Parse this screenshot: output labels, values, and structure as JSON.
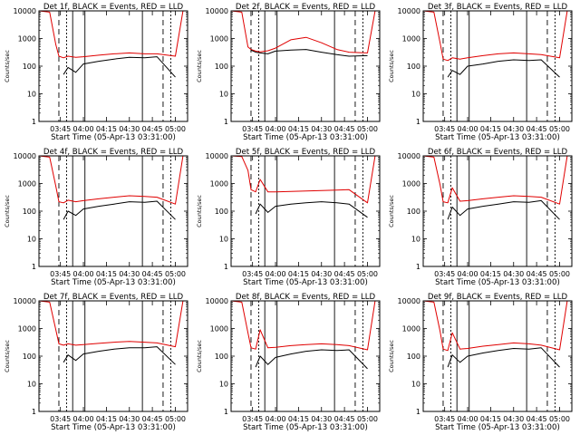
{
  "figure": {
    "xlabel": "Start Time (05-Apr-13 03:31:00)",
    "ylabel": "Counts/sec",
    "x_tick_labels": [
      "03:45",
      "04:00",
      "04:15",
      "04:30",
      "04:45",
      "05:00"
    ],
    "y_tick_labels": [
      "1",
      "10",
      "100",
      "1000",
      "10000"
    ],
    "colors": {
      "events": "#000000",
      "lld": "#e00000",
      "axes": "#000000"
    }
  },
  "chart_data": [
    {
      "type": "line",
      "title": "Det 1f, BLACK = Events, RED = LLD",
      "xlabel": "Start Time (05-Apr-13 03:31:00)",
      "ylabel": "Counts/sec",
      "yscale": "log",
      "ylim": [
        1,
        10000
      ],
      "xlim": [
        "03:31",
        "05:08"
      ],
      "x_time": [
        "03:31",
        "03:38",
        "03:42",
        "03:44",
        "03:47",
        "03:50",
        "03:55",
        "04:00",
        "04:10",
        "04:20",
        "04:30",
        "04:40",
        "04:48",
        "05:00",
        "05:05"
      ],
      "series": [
        {
          "name": "RED = LLD",
          "values": [
            10000,
            9000,
            600,
            230,
            200,
            230,
            210,
            220,
            250,
            280,
            300,
            280,
            280,
            230,
            10000
          ]
        },
        {
          "name": "BLACK = Events",
          "values": [
            null,
            null,
            null,
            null,
            50,
            90,
            60,
            120,
            150,
            180,
            210,
            200,
            220,
            40,
            null
          ]
        }
      ]
    },
    {
      "type": "line",
      "title": "Det 2f, BLACK = Events, RED = LLD",
      "xlabel": "Start Time (05-Apr-13 03:31:00)",
      "ylabel": "Counts/sec",
      "yscale": "log",
      "ylim": [
        1,
        10000
      ],
      "xlim": [
        "03:31",
        "05:08"
      ],
      "x_time": [
        "03:31",
        "03:38",
        "03:42",
        "03:44",
        "03:47",
        "03:50",
        "03:55",
        "04:00",
        "04:10",
        "04:20",
        "04:30",
        "04:40",
        "04:48",
        "05:00",
        "05:05"
      ],
      "series": [
        {
          "name": "RED = LLD",
          "values": [
            10000,
            9000,
            500,
            400,
            350,
            330,
            360,
            450,
            900,
            1100,
            700,
            400,
            320,
            300,
            10000
          ]
        },
        {
          "name": "BLACK = Events",
          "values": [
            null,
            null,
            null,
            380,
            320,
            300,
            280,
            350,
            380,
            400,
            320,
            260,
            230,
            240,
            null
          ]
        }
      ]
    },
    {
      "type": "line",
      "title": "Det 3f, BLACK = Events, RED = LLD",
      "xlabel": "Start Time (05-Apr-13 03:31:00)",
      "ylabel": "Counts/sec",
      "yscale": "log",
      "ylim": [
        1,
        10000
      ],
      "xlim": [
        "03:31",
        "05:08"
      ],
      "x_time": [
        "03:31",
        "03:38",
        "03:42",
        "03:44",
        "03:47",
        "03:50",
        "03:55",
        "04:00",
        "04:10",
        "04:20",
        "04:30",
        "04:40",
        "04:48",
        "05:00",
        "05:05"
      ],
      "series": [
        {
          "name": "RED = LLD",
          "values": [
            10000,
            9000,
            700,
            180,
            160,
            200,
            180,
            200,
            240,
            280,
            300,
            280,
            260,
            200,
            10000
          ]
        },
        {
          "name": "BLACK = Events",
          "values": [
            null,
            null,
            null,
            null,
            40,
            70,
            50,
            100,
            120,
            150,
            170,
            160,
            170,
            40,
            null
          ]
        }
      ]
    },
    {
      "type": "line",
      "title": "Det 4f, BLACK = Events, RED = LLD",
      "xlabel": "Start Time (05-Apr-13 03:31:00)",
      "ylabel": "Counts/sec",
      "yscale": "log",
      "ylim": [
        1,
        10000
      ],
      "xlim": [
        "03:31",
        "05:08"
      ],
      "x_time": [
        "03:31",
        "03:38",
        "03:42",
        "03:44",
        "03:47",
        "03:50",
        "03:55",
        "04:00",
        "04:10",
        "04:20",
        "04:30",
        "04:40",
        "04:48",
        "05:00",
        "05:05"
      ],
      "series": [
        {
          "name": "RED = LLD",
          "values": [
            10000,
            9000,
            800,
            220,
            200,
            250,
            220,
            240,
            280,
            320,
            360,
            340,
            320,
            180,
            10000
          ]
        },
        {
          "name": "BLACK = Events",
          "values": [
            null,
            null,
            null,
            null,
            50,
            100,
            70,
            120,
            150,
            180,
            220,
            210,
            230,
            50,
            null
          ]
        }
      ]
    },
    {
      "type": "line",
      "title": "Det 5f, BLACK = Events, RED = LLD",
      "xlabel": "Start Time (05-Apr-13 03:31:00)",
      "ylabel": "Counts/sec",
      "yscale": "log",
      "ylim": [
        1,
        10000
      ],
      "xlim": [
        "03:31",
        "05:08"
      ],
      "x_time": [
        "03:31",
        "03:38",
        "03:42",
        "03:44",
        "03:47",
        "03:50",
        "03:55",
        "04:00",
        "04:10",
        "04:20",
        "04:30",
        "04:40",
        "04:48",
        "05:00",
        "05:05"
      ],
      "series": [
        {
          "name": "RED = LLD",
          "values": [
            10000,
            9500,
            3000,
            600,
            500,
            1400,
            500,
            500,
            520,
            540,
            560,
            580,
            600,
            200,
            10000
          ]
        },
        {
          "name": "BLACK = Events",
          "values": [
            null,
            null,
            null,
            null,
            80,
            180,
            90,
            150,
            180,
            200,
            220,
            200,
            180,
            60,
            null
          ]
        }
      ]
    },
    {
      "type": "line",
      "title": "Det 6f, BLACK = Events, RED = LLD",
      "xlabel": "Start Time (05-Apr-13 03:31:00)",
      "ylabel": "Counts/sec",
      "yscale": "log",
      "ylim": [
        1,
        10000
      ],
      "xlim": [
        "03:31",
        "05:08"
      ],
      "x_time": [
        "03:31",
        "03:38",
        "03:42",
        "03:44",
        "03:47",
        "03:50",
        "03:55",
        "04:00",
        "04:10",
        "04:20",
        "04:30",
        "04:40",
        "04:48",
        "05:00",
        "05:05"
      ],
      "series": [
        {
          "name": "RED = LLD",
          "values": [
            10000,
            9000,
            900,
            220,
            200,
            700,
            230,
            240,
            280,
            320,
            360,
            340,
            320,
            180,
            10000
          ]
        },
        {
          "name": "BLACK = Events",
          "values": [
            null,
            null,
            null,
            null,
            50,
            140,
            70,
            120,
            150,
            180,
            220,
            210,
            240,
            50,
            null
          ]
        }
      ]
    },
    {
      "type": "line",
      "title": "Det 7f, BLACK = Events, RED = LLD",
      "xlabel": "Start Time (05-Apr-13 03:31:00)",
      "ylabel": "Counts/sec",
      "yscale": "log",
      "ylim": [
        1,
        10000
      ],
      "xlim": [
        "03:31",
        "05:08"
      ],
      "x_time": [
        "03:31",
        "03:38",
        "03:42",
        "03:44",
        "03:47",
        "03:50",
        "03:55",
        "04:00",
        "04:10",
        "04:20",
        "04:30",
        "04:40",
        "04:48",
        "05:00",
        "05:05"
      ],
      "series": [
        {
          "name": "RED = LLD",
          "values": [
            10000,
            9000,
            900,
            280,
            250,
            280,
            250,
            260,
            290,
            320,
            340,
            320,
            300,
            220,
            10000
          ]
        },
        {
          "name": "BLACK = Events",
          "values": [
            null,
            null,
            null,
            null,
            60,
            110,
            70,
            120,
            150,
            180,
            200,
            200,
            220,
            50,
            null
          ]
        }
      ]
    },
    {
      "type": "line",
      "title": "Det 8f, BLACK = Events, RED = LLD",
      "xlabel": "Start Time (05-Apr-13 03:31:00)",
      "ylabel": "Counts/sec",
      "yscale": "log",
      "ylim": [
        1,
        10000
      ],
      "xlim": [
        "03:31",
        "05:08"
      ],
      "x_time": [
        "03:31",
        "03:38",
        "03:42",
        "03:44",
        "03:47",
        "03:50",
        "03:55",
        "04:00",
        "04:10",
        "04:20",
        "04:30",
        "04:40",
        "04:48",
        "05:00",
        "05:05"
      ],
      "series": [
        {
          "name": "RED = LLD",
          "values": [
            10000,
            9000,
            700,
            200,
            180,
            900,
            200,
            210,
            240,
            260,
            280,
            260,
            240,
            170,
            10000
          ]
        },
        {
          "name": "BLACK = Events",
          "values": [
            null,
            null,
            null,
            null,
            40,
            100,
            50,
            90,
            120,
            150,
            170,
            160,
            170,
            35,
            null
          ]
        }
      ]
    },
    {
      "type": "line",
      "title": "Det 9f, BLACK = Events, RED = LLD",
      "xlabel": "Start Time (05-Apr-13 03:31:00)",
      "ylabel": "Counts/sec",
      "yscale": "log",
      "ylim": [
        1,
        10000
      ],
      "xlim": [
        "03:31",
        "05:08"
      ],
      "x_time": [
        "03:31",
        "03:38",
        "03:42",
        "03:44",
        "03:47",
        "03:50",
        "03:55",
        "04:00",
        "04:10",
        "04:20",
        "04:30",
        "04:40",
        "04:48",
        "05:00",
        "05:05"
      ],
      "series": [
        {
          "name": "RED = LLD",
          "values": [
            10000,
            9000,
            800,
            180,
            160,
            700,
            180,
            190,
            230,
            260,
            300,
            280,
            250,
            170,
            10000
          ]
        },
        {
          "name": "BLACK = Events",
          "values": [
            null,
            null,
            null,
            null,
            40,
            110,
            60,
            100,
            130,
            160,
            190,
            180,
            200,
            40,
            null
          ]
        }
      ]
    }
  ]
}
